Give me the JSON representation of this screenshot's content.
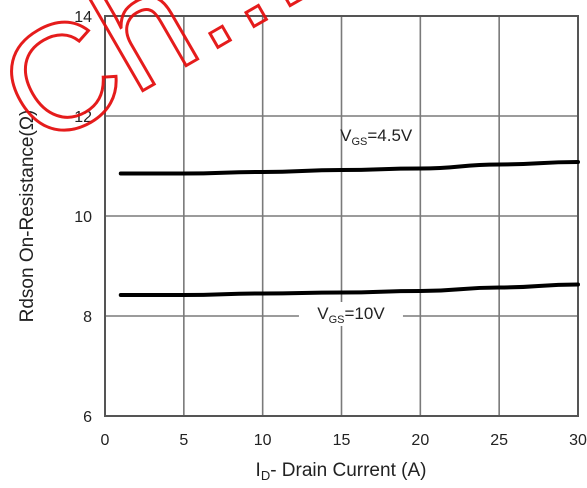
{
  "chart_data": {
    "type": "line",
    "title": "",
    "xlabel": "I",
    "xlabel_subscript": "D",
    "xlabel_suffix": "- Drain Current (A)",
    "ylabel": "Rdson On-Resistance(Ω)",
    "xlim": [
      0,
      30
    ],
    "ylim": [
      6,
      14
    ],
    "x_ticks": [
      "0",
      "5",
      "10",
      "15",
      "20",
      "25",
      "30"
    ],
    "y_ticks": [
      "6",
      "8",
      "10",
      "12",
      "14"
    ],
    "grid": true,
    "series": [
      {
        "name": "VGS=4.5V",
        "label_main": "V",
        "label_sub": "GS",
        "label_value": "=4.5V",
        "x": [
          1,
          5,
          10,
          15,
          20,
          25,
          30
        ],
        "y": [
          10.85,
          10.85,
          10.88,
          10.92,
          10.95,
          11.03,
          11.08
        ]
      },
      {
        "name": "VGS=10V",
        "label_main": "V",
        "label_sub": "GS",
        "label_value": "=10V",
        "x": [
          1,
          5,
          10,
          15,
          20,
          25,
          30
        ],
        "y": [
          8.42,
          8.42,
          8.45,
          8.47,
          8.5,
          8.57,
          8.63
        ]
      }
    ],
    "watermark": "Ch...",
    "colors": {
      "line": "#000000",
      "grid": "#7a7a7a",
      "frame": "#555555",
      "text": "#222222",
      "watermark": "#e41010"
    }
  }
}
